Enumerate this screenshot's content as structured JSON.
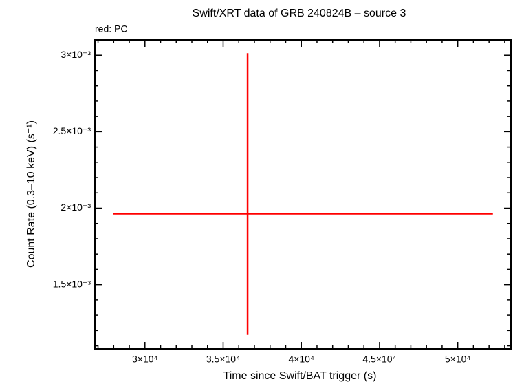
{
  "chart_data": {
    "type": "errorbar",
    "title": "Swift/XRT data of GRB 240824B – source 3",
    "subtitle": "red: PC",
    "xlabel": "Time since Swift/BAT trigger (s)",
    "ylabel": "Count Rate (0.3–10 keV) (s⁻¹)",
    "xlim": [
      26800,
      53400
    ],
    "ylim": [
      0.00108,
      0.0031
    ],
    "xticks": [
      {
        "value": 30000,
        "label": "3×10⁴"
      },
      {
        "value": 35000,
        "label": "3.5×10⁴"
      },
      {
        "value": 40000,
        "label": "4×10⁴"
      },
      {
        "value": 45000,
        "label": "4.5×10⁴"
      },
      {
        "value": 50000,
        "label": "5×10⁴"
      }
    ],
    "yticks": [
      {
        "value": 0.0015,
        "label": "1.5×10⁻³"
      },
      {
        "value": 0.002,
        "label": "2×10⁻³"
      },
      {
        "value": 0.0025,
        "label": "2.5×10⁻³"
      },
      {
        "value": 0.003,
        "label": "3×10⁻³"
      }
    ],
    "xminorticks": [
      27000,
      28000,
      29000,
      31000,
      32000,
      33000,
      34000,
      36000,
      37000,
      38000,
      39000,
      41000,
      42000,
      43000,
      44000,
      46000,
      47000,
      48000,
      49000,
      51000,
      52000,
      53000
    ],
    "yminorticks": [
      0.0011,
      0.0012,
      0.0013,
      0.0014,
      0.0016,
      0.0017,
      0.0018,
      0.0019,
      0.0021,
      0.0022,
      0.0023,
      0.0024,
      0.0026,
      0.0027,
      0.0028,
      0.0029,
      0.0031
    ],
    "series": [
      {
        "color": "#ff0000",
        "x": [
          36564
        ],
        "x_low": [
          27974
        ],
        "x_high": [
          52247
        ],
        "y": [
          0.001964
        ],
        "y_low": [
          0.001171
        ],
        "y_high": [
          0.0030135
        ]
      }
    ]
  }
}
